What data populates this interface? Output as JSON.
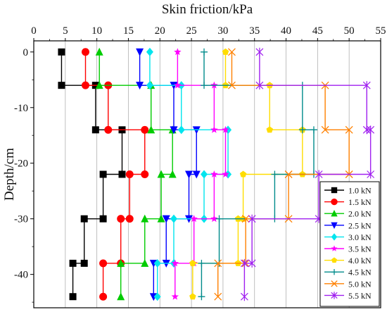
{
  "chart_data": {
    "type": "step",
    "title": "",
    "xlabel": "Skin friction/kPa",
    "ylabel": "Depth/cm",
    "xlim": [
      0,
      55
    ],
    "ylim": [
      -46,
      2
    ],
    "x_ticks": [
      0,
      5,
      10,
      15,
      20,
      25,
      30,
      35,
      40,
      45,
      50,
      55
    ],
    "y_ticks": [
      0,
      -10,
      -20,
      -30,
      -40
    ],
    "x_axis_position": "top",
    "grid": "vertical",
    "legend_position": "bottom-right",
    "series": [
      {
        "name": "1.0 kN",
        "color": "#000000",
        "marker": "square",
        "points": [
          [
            4.4,
            0
          ],
          [
            4.4,
            -6
          ],
          [
            9.8,
            -6
          ],
          [
            9.8,
            -14
          ],
          [
            14.0,
            -14
          ],
          [
            14.0,
            -22
          ],
          [
            11.0,
            -22
          ],
          [
            11.0,
            -30
          ],
          [
            8.0,
            -30
          ],
          [
            8.0,
            -38
          ],
          [
            6.2,
            -38
          ],
          [
            6.2,
            -44
          ]
        ]
      },
      {
        "name": "1.5 kN",
        "color": "#ff0000",
        "marker": "circle",
        "points": [
          [
            8.2,
            0
          ],
          [
            8.2,
            -6
          ],
          [
            11.8,
            -6
          ],
          [
            11.8,
            -14
          ],
          [
            17.6,
            -14
          ],
          [
            17.6,
            -22
          ],
          [
            15.2,
            -22
          ],
          [
            15.2,
            -30
          ],
          [
            13.8,
            -30
          ],
          [
            13.8,
            -38
          ],
          [
            11.0,
            -38
          ],
          [
            11.0,
            -44
          ]
        ]
      },
      {
        "name": "2.0 kN",
        "color": "#00cc00",
        "marker": "triangle-up",
        "points": [
          [
            10.4,
            0
          ],
          [
            10.4,
            -6
          ],
          [
            18.6,
            -6
          ],
          [
            18.6,
            -14
          ],
          [
            22.0,
            -14
          ],
          [
            22.0,
            -22
          ],
          [
            20.2,
            -22
          ],
          [
            20.2,
            -30
          ],
          [
            17.6,
            -30
          ],
          [
            17.6,
            -38
          ],
          [
            13.8,
            -38
          ],
          [
            13.8,
            -44
          ]
        ]
      },
      {
        "name": "2.5 kN",
        "color": "#0000ff",
        "marker": "triangle-down",
        "points": [
          [
            16.8,
            0
          ],
          [
            16.8,
            -6
          ],
          [
            22.2,
            -6
          ],
          [
            22.2,
            -14
          ],
          [
            25.8,
            -14
          ],
          [
            25.8,
            -22
          ],
          [
            24.6,
            -22
          ],
          [
            24.6,
            -30
          ],
          [
            21.0,
            -30
          ],
          [
            21.0,
            -38
          ],
          [
            19.0,
            -38
          ],
          [
            19.0,
            -44
          ]
        ]
      },
      {
        "name": "3.0 kN",
        "color": "#00e5ee",
        "marker": "diamond",
        "points": [
          [
            18.4,
            0
          ],
          [
            18.4,
            -6
          ],
          [
            23.4,
            -6
          ],
          [
            23.4,
            -14
          ],
          [
            30.8,
            -14
          ],
          [
            30.8,
            -22
          ],
          [
            27.0,
            -22
          ],
          [
            27.0,
            -30
          ],
          [
            22.2,
            -30
          ],
          [
            22.2,
            -38
          ],
          [
            19.6,
            -38
          ],
          [
            19.6,
            -44
          ]
        ]
      },
      {
        "name": "3.5 kN",
        "color": "#ff00ff",
        "marker": "star",
        "points": [
          [
            22.8,
            0
          ],
          [
            22.8,
            -6
          ],
          [
            28.6,
            -6
          ],
          [
            28.6,
            -14
          ],
          [
            30.4,
            -14
          ],
          [
            30.4,
            -22
          ],
          [
            28.6,
            -22
          ],
          [
            28.6,
            -30
          ],
          [
            25.4,
            -30
          ],
          [
            25.4,
            -38
          ],
          [
            22.4,
            -38
          ],
          [
            22.4,
            -44
          ]
        ]
      },
      {
        "name": "4.0 kN",
        "color": "#ffdd00",
        "marker": "pentagon",
        "points": [
          [
            30.4,
            0
          ],
          [
            30.4,
            -6
          ],
          [
            37.4,
            -6
          ],
          [
            37.4,
            -14
          ],
          [
            42.6,
            -14
          ],
          [
            42.6,
            -22
          ],
          [
            33.2,
            -22
          ],
          [
            33.2,
            -30
          ],
          [
            32.4,
            -30
          ],
          [
            32.4,
            -38
          ],
          [
            25.2,
            -38
          ],
          [
            25.2,
            -44
          ]
        ]
      },
      {
        "name": "4.5 kN",
        "color": "#008b8b",
        "marker": "plus",
        "points": [
          [
            27.0,
            0
          ],
          [
            27.0,
            -6
          ],
          [
            42.6,
            -6
          ],
          [
            42.6,
            -14
          ],
          [
            44.4,
            -14
          ],
          [
            44.4,
            -22
          ],
          [
            38.2,
            -22
          ],
          [
            38.2,
            -30
          ],
          [
            29.4,
            -30
          ],
          [
            29.4,
            -38
          ],
          [
            26.6,
            -38
          ],
          [
            26.6,
            -44
          ]
        ]
      },
      {
        "name": "5.0 kN",
        "color": "#ff8000",
        "marker": "x",
        "points": [
          [
            31.4,
            0
          ],
          [
            31.4,
            -6
          ],
          [
            46.2,
            -6
          ],
          [
            46.2,
            -14
          ],
          [
            50.0,
            -14
          ],
          [
            50.0,
            -22
          ],
          [
            40.4,
            -22
          ],
          [
            40.4,
            -30
          ],
          [
            33.6,
            -30
          ],
          [
            33.6,
            -38
          ],
          [
            29.2,
            -38
          ],
          [
            29.2,
            -44
          ]
        ]
      },
      {
        "name": "5.5 kN",
        "color": "#a020f0",
        "marker": "asterisk",
        "points": [
          [
            35.8,
            0
          ],
          [
            35.8,
            -6
          ],
          [
            52.8,
            -6
          ],
          [
            52.8,
            -14
          ],
          [
            53.4,
            -14
          ],
          [
            53.4,
            -22
          ],
          [
            45.2,
            -22
          ],
          [
            45.2,
            -30
          ],
          [
            34.6,
            -30
          ],
          [
            34.6,
            -38
          ],
          [
            33.4,
            -38
          ],
          [
            33.4,
            -44
          ]
        ]
      }
    ]
  }
}
